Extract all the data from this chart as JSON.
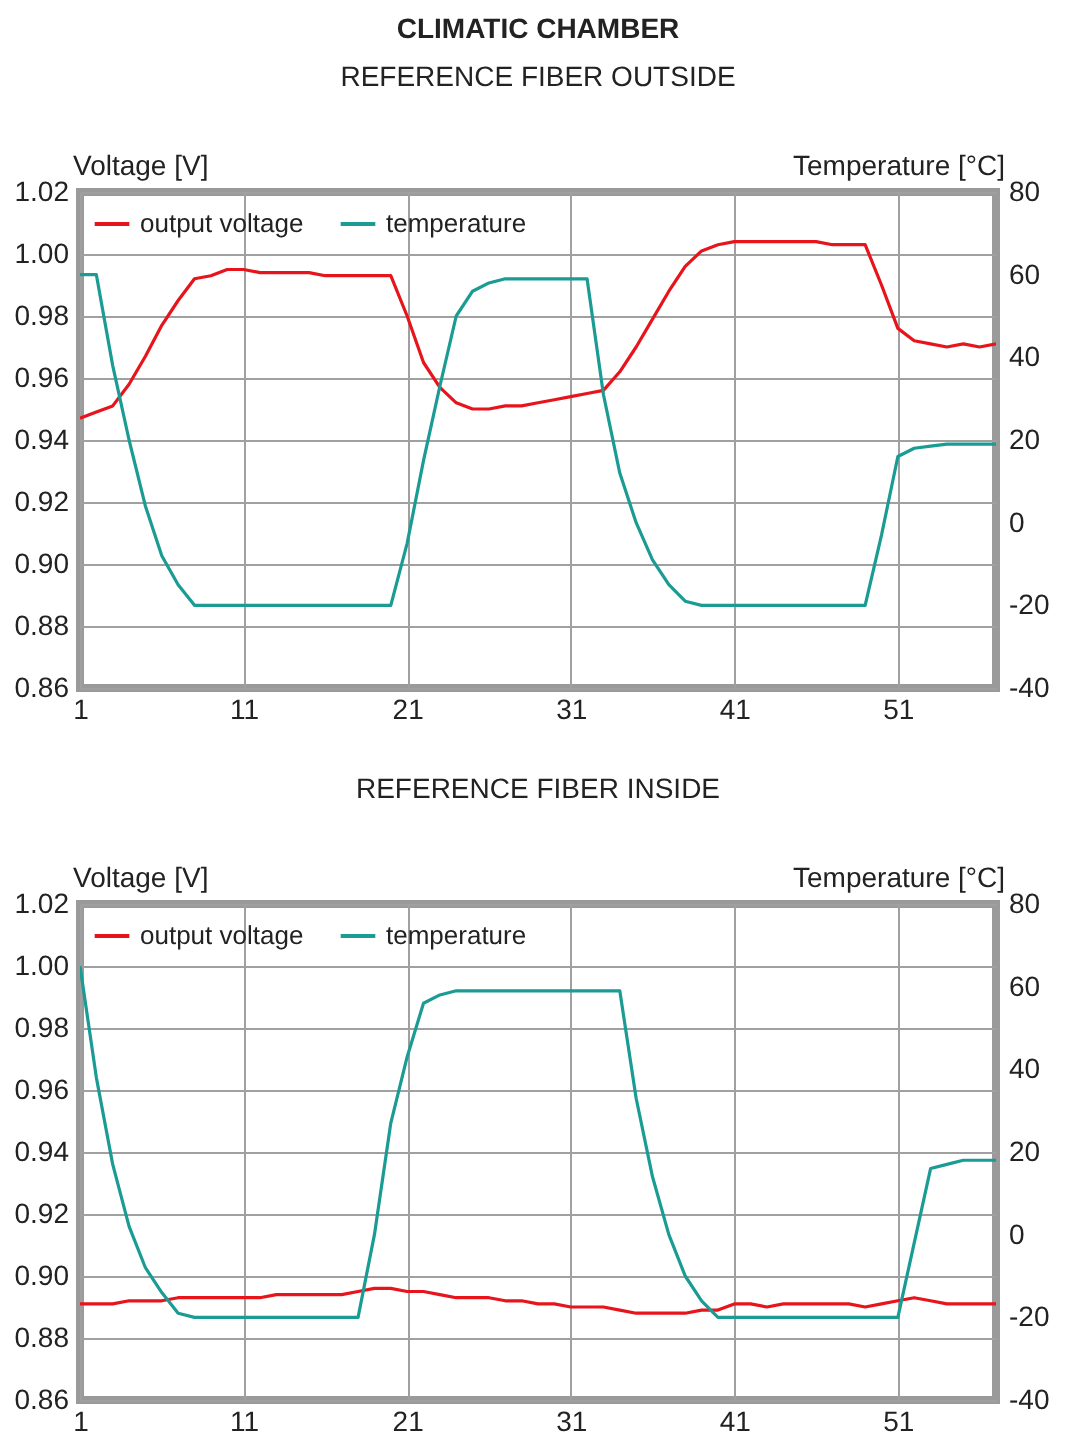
{
  "chart_data": [
    {
      "type": "line",
      "title": "CLIMATIC CHAMBER",
      "subtitle": "REFERENCE FIBER OUTSIDE",
      "ylabel": "Voltage [V]",
      "y2label": "Temperature [°C]",
      "x": [
        1,
        2,
        3,
        4,
        5,
        6,
        7,
        8,
        9,
        10,
        11,
        12,
        13,
        14,
        15,
        16,
        17,
        18,
        19,
        20,
        21,
        22,
        23,
        24,
        25,
        26,
        27,
        28,
        29,
        30,
        31,
        32,
        33,
        34,
        35,
        36,
        37,
        38,
        39,
        40,
        41,
        42,
        43,
        44,
        45,
        46,
        47,
        48,
        49,
        50,
        51,
        52,
        53,
        54,
        55,
        56,
        57
      ],
      "series": [
        {
          "name": "output voltage",
          "color": "#e8141c",
          "values": [
            0.947,
            0.949,
            0.951,
            0.958,
            0.967,
            0.977,
            0.985,
            0.992,
            0.993,
            0.995,
            0.995,
            0.994,
            0.994,
            0.994,
            0.994,
            0.993,
            0.993,
            0.993,
            0.993,
            0.993,
            0.98,
            0.965,
            0.957,
            0.952,
            0.95,
            0.95,
            0.951,
            0.951,
            0.952,
            0.953,
            0.954,
            0.955,
            0.956,
            0.962,
            0.97,
            0.979,
            0.988,
            0.996,
            1.001,
            1.003,
            1.004,
            1.004,
            1.004,
            1.004,
            1.004,
            1.004,
            1.003,
            1.003,
            1.003,
            0.99,
            0.976,
            0.972,
            0.971,
            0.97,
            0.971,
            0.97,
            0.971
          ]
        },
        {
          "name": "temperature",
          "color": "#1a9b93",
          "axis": "y2",
          "values": [
            60,
            60,
            38,
            20,
            4,
            -8,
            -15,
            -20,
            -20,
            -20,
            -20,
            -20,
            -20,
            -20,
            -20,
            -20,
            -20,
            -20,
            -20,
            -20,
            -5,
            15,
            33,
            50,
            56,
            58,
            59,
            59,
            59,
            59,
            59,
            59,
            31,
            12,
            0,
            -9,
            -15,
            -19,
            -20,
            -20,
            -20,
            -20,
            -20,
            -20,
            -20,
            -20,
            -20,
            -20,
            -20,
            -3,
            16,
            18,
            18.5,
            19,
            19,
            19,
            19
          ]
        }
      ],
      "xlim": [
        1,
        57
      ],
      "xticks": [
        1,
        11,
        21,
        31,
        41,
        51
      ],
      "ylim": [
        0.86,
        1.02
      ],
      "yticks": [
        {
          "value": 0.86,
          "label": "0.86"
        },
        {
          "value": 0.88,
          "label": "0.88"
        },
        {
          "value": 0.9,
          "label": "0.90"
        },
        {
          "value": 0.92,
          "label": "0.92"
        },
        {
          "value": 0.94,
          "label": "0.94"
        },
        {
          "value": 0.96,
          "label": "0.96"
        },
        {
          "value": 0.98,
          "label": "0.98"
        },
        {
          "value": 1,
          "label": "1.00"
        },
        {
          "value": 1.02,
          "label": "1.02"
        }
      ],
      "y2lim": [
        -40,
        80
      ],
      "y2ticks": [
        -40,
        -20,
        0,
        20,
        40,
        60,
        80
      ],
      "grid": true,
      "legend": "top left"
    },
    {
      "type": "line",
      "title": "REFERENCE FIBER INSIDE",
      "ylabel": "Voltage [V]",
      "y2label": "Temperature [°C]",
      "x": [
        1,
        2,
        3,
        4,
        5,
        6,
        7,
        8,
        9,
        10,
        11,
        12,
        13,
        14,
        15,
        16,
        17,
        18,
        19,
        20,
        21,
        22,
        23,
        24,
        25,
        26,
        27,
        28,
        29,
        30,
        31,
        32,
        33,
        34,
        35,
        36,
        37,
        38,
        39,
        40,
        41,
        42,
        43,
        44,
        45,
        46,
        47,
        48,
        49,
        50,
        51,
        52,
        53,
        54,
        55,
        56,
        57
      ],
      "series": [
        {
          "name": "output voltage",
          "color": "#e8141c",
          "values": [
            0.891,
            0.891,
            0.891,
            0.892,
            0.892,
            0.892,
            0.893,
            0.893,
            0.893,
            0.893,
            0.893,
            0.893,
            0.894,
            0.894,
            0.894,
            0.894,
            0.894,
            0.895,
            0.896,
            0.896,
            0.895,
            0.895,
            0.894,
            0.893,
            0.893,
            0.893,
            0.892,
            0.892,
            0.891,
            0.891,
            0.89,
            0.89,
            0.89,
            0.889,
            0.888,
            0.888,
            0.888,
            0.888,
            0.889,
            0.889,
            0.891,
            0.891,
            0.89,
            0.891,
            0.891,
            0.891,
            0.891,
            0.891,
            0.89,
            0.891,
            0.892,
            0.893,
            0.892,
            0.891,
            0.891,
            0.891,
            0.891
          ]
        },
        {
          "name": "temperature",
          "color": "#1a9b93",
          "axis": "y2",
          "values": [
            65,
            38,
            17,
            2,
            -8,
            -14,
            -19,
            -20,
            -20,
            -20,
            -20,
            -20,
            -20,
            -20,
            -20,
            -20,
            -20,
            -20,
            0,
            27,
            43,
            56,
            58,
            59,
            59,
            59,
            59,
            59,
            59,
            59,
            59,
            59,
            59,
            59,
            33,
            14,
            0,
            -10,
            -16,
            -20,
            -20,
            -20,
            -20,
            -20,
            -20,
            -20,
            -20,
            -20,
            -20,
            -20,
            -20,
            -2,
            16,
            17,
            18,
            18,
            18
          ]
        }
      ],
      "xlim": [
        1,
        57
      ],
      "xticks": [
        1,
        11,
        21,
        31,
        41,
        51
      ],
      "ylim": [
        0.86,
        1.02
      ],
      "yticks": [
        {
          "value": 0.86,
          "label": "0.86"
        },
        {
          "value": 0.88,
          "label": "0.88"
        },
        {
          "value": 0.9,
          "label": "0.90"
        },
        {
          "value": 0.92,
          "label": "0.92"
        },
        {
          "value": 0.94,
          "label": "0.94"
        },
        {
          "value": 0.96,
          "label": "0.96"
        },
        {
          "value": 0.98,
          "label": "0.98"
        },
        {
          "value": 1,
          "label": "1.00"
        },
        {
          "value": 1.02,
          "label": "1.02"
        }
      ],
      "y2lim": [
        -40,
        80
      ],
      "y2ticks": [
        -40,
        -20,
        0,
        20,
        40,
        60,
        80
      ],
      "grid": true,
      "legend": "top left"
    }
  ]
}
